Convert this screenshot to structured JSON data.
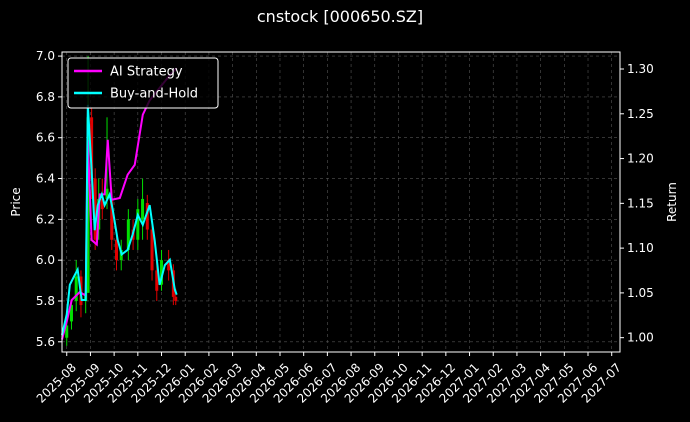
{
  "chart_data": {
    "type": "candlestick",
    "title": "cnstock [000650.SZ]",
    "ylabel": "Price",
    "y2label": "Return",
    "grid": true,
    "legend_loc": "upper left",
    "up_color": "#00e000",
    "down_color": "#e00000",
    "xlim": [
      -0.2,
      23.35
    ],
    "xticks": [
      {
        "value": 0,
        "label": "2025-08"
      },
      {
        "value": 1,
        "label": "2025-09"
      },
      {
        "value": 2,
        "label": "2025-10"
      },
      {
        "value": 3,
        "label": "2025-11"
      },
      {
        "value": 4,
        "label": "2025-12"
      },
      {
        "value": 5,
        "label": "2026-01"
      },
      {
        "value": 6,
        "label": "2026-02"
      },
      {
        "value": 7,
        "label": "2026-03"
      },
      {
        "value": 8,
        "label": "2026-04"
      },
      {
        "value": 9,
        "label": "2026-05"
      },
      {
        "value": 10,
        "label": "2026-06"
      },
      {
        "value": 11,
        "label": "2026-07"
      },
      {
        "value": 12,
        "label": "2026-08"
      },
      {
        "value": 13,
        "label": "2026-09"
      },
      {
        "value": 14,
        "label": "2026-10"
      },
      {
        "value": 15,
        "label": "2026-11"
      },
      {
        "value": 16,
        "label": "2026-12"
      },
      {
        "value": 17,
        "label": "2027-01"
      },
      {
        "value": 18,
        "label": "2027-02"
      },
      {
        "value": 19,
        "label": "2027-03"
      },
      {
        "value": 20,
        "label": "2027-04"
      },
      {
        "value": 21,
        "label": "2027-05"
      },
      {
        "value": 22,
        "label": "2027-06"
      },
      {
        "value": 23,
        "label": "2027-07"
      }
    ],
    "ylim": [
      5.55,
      7.02
    ],
    "yticks": [
      5.6,
      5.8,
      {
        "value": 6,
        "label": "6.0"
      },
      6.2,
      6.4,
      6.6,
      6.8,
      {
        "value": 7,
        "label": "7.0"
      }
    ],
    "y2lim": [
      0.984,
      1.319
    ],
    "y2ticks": [
      {
        "value": 1,
        "label": "1.00"
      },
      1.05,
      {
        "value": 1.1,
        "label": "1.10"
      },
      1.15,
      {
        "value": 1.2,
        "label": "1.20"
      },
      1.25,
      {
        "value": 1.3,
        "label": "1.30"
      }
    ],
    "candles": {
      "x": [
        0,
        0.2,
        0.4,
        0.6,
        0.8,
        0.9,
        1.05,
        1.2,
        1.35,
        1.5,
        1.7,
        1.9,
        2.1,
        2.3,
        2.6,
        2.8,
        3,
        3.2,
        3.4,
        3.6,
        3.8,
        4,
        4.3,
        4.5,
        4.6
      ],
      "open": [
        5.62,
        5.7,
        5.8,
        5.92,
        5.8,
        5.84,
        6.7,
        6.4,
        6.15,
        6.3,
        6.3,
        6.3,
        6.1,
        6,
        6.05,
        6.15,
        6.1,
        6.2,
        6.28,
        6.15,
        5.95,
        5.88,
        6,
        5.95,
        5.82
      ],
      "high": [
        5.7,
        5.8,
        6,
        5.95,
        5.9,
        7,
        6.75,
        6.45,
        6.4,
        6.4,
        6.7,
        6.35,
        6.15,
        6.1,
        6.25,
        6.2,
        6.3,
        6.4,
        6.32,
        6.2,
        6.02,
        6.05,
        6.05,
        5.98,
        5.86
      ],
      "low": [
        5.58,
        5.66,
        5.75,
        5.72,
        5.74,
        5.84,
        6.3,
        6.05,
        6.1,
        6.2,
        6.25,
        6.05,
        5.95,
        5.95,
        6,
        6.05,
        6.05,
        6.1,
        6.1,
        5.9,
        5.8,
        5.85,
        5.9,
        5.78,
        5.78
      ],
      "close": [
        5.68,
        5.78,
        5.92,
        5.78,
        5.84,
        6.7,
        6.4,
        6.1,
        6.3,
        6.25,
        6.35,
        6.1,
        6,
        6.05,
        6.2,
        6.1,
        6.25,
        6.3,
        6.15,
        5.95,
        5.85,
        6,
        5.95,
        5.82,
        5.8
      ]
    },
    "series": [
      {
        "name": "AI Strategy",
        "color": "#ff00ff",
        "axis": "y2",
        "x": [
          -0.2,
          0,
          0.21,
          0.55,
          0.8,
          0.89,
          1.05,
          1.27,
          1.39,
          1.6,
          1.73,
          1.9,
          2.24,
          2.57,
          2.87,
          3.21,
          3.5,
          3.92,
          4.35,
          4.64
        ],
        "values": [
          0.998,
          1.018,
          1.042,
          1.051,
          1.047,
          1.221,
          1.109,
          1.104,
          1.16,
          1.16,
          1.221,
          1.154,
          1.156,
          1.182,
          1.193,
          1.249,
          1.265,
          1.279,
          1.293,
          1.301
        ]
      },
      {
        "name": "Buy-and-Hold",
        "color": "#00ffff",
        "axis": "y2",
        "x": [
          -0.2,
          0,
          0.13,
          0.34,
          0.46,
          0.63,
          0.8,
          0.89,
          1.05,
          1.18,
          1.31,
          1.48,
          1.6,
          1.81,
          1.94,
          2.15,
          2.32,
          2.57,
          2.78,
          3,
          3.21,
          3.5,
          3.71,
          3.92,
          4.14,
          4.35,
          4.56,
          4.64
        ],
        "values": [
          1.003,
          1.026,
          1.059,
          1.07,
          1.076,
          1.042,
          1.042,
          1.26,
          1.187,
          1.12,
          1.148,
          1.16,
          1.148,
          1.16,
          1.143,
          1.109,
          1.093,
          1.098,
          1.115,
          1.137,
          1.126,
          1.148,
          1.109,
          1.059,
          1.081,
          1.087,
          1.054,
          1.048
        ]
      }
    ]
  }
}
